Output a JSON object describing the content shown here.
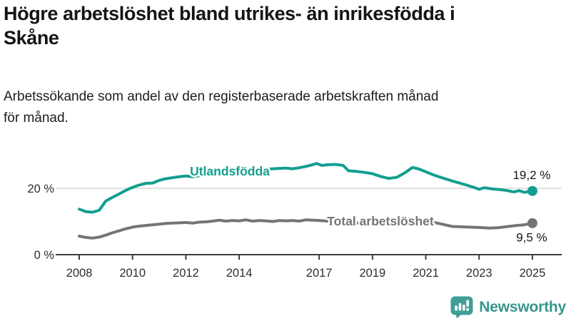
{
  "header": {
    "title": "Högre arbetslöshet bland utrikes- än inrikesfödda i Skåne",
    "title_lines": [
      "Högre arbetslöshet bland utrikes- än inrikesfödda i",
      "Skåne"
    ],
    "subtitle": "Arbetssökande som andel av den registerbaserade arbetskraften månad för månad.",
    "subtitle_lines": [
      "Arbetssökande som andel av den registerbaserade arbetskraften månad",
      "för månad."
    ]
  },
  "chart_data": {
    "type": "line",
    "title": "Arbetssökande som andel av den registerbaserade arbetskraften månad för månad",
    "xlabel": "",
    "ylabel": "",
    "xlim": [
      2008,
      2025
    ],
    "ylim": [
      0,
      30
    ],
    "grid": "y-only",
    "x_ticks": [
      2008,
      2010,
      2012,
      2014,
      2017,
      2019,
      2021,
      2023,
      2025
    ],
    "y_ticks": [
      {
        "value": 0,
        "label": "0 %"
      },
      {
        "value": 20,
        "label": "20 %"
      }
    ],
    "series": [
      {
        "name": "Utlandsfödda",
        "color": "#129e8f",
        "end_label": "19,2 %",
        "end_value": 19.2,
        "end_label_pos": "above",
        "x": [
          2008,
          2008.25,
          2008.5,
          2008.75,
          2009,
          2009.25,
          2009.5,
          2009.75,
          2010,
          2010.25,
          2010.5,
          2010.75,
          2011,
          2011.25,
          2011.5,
          2011.75,
          2012,
          2012.25,
          2012.5,
          2012.75,
          2013,
          2013.25,
          2013.5,
          2013.75,
          2014,
          2014.25,
          2014.5,
          2014.75,
          2015,
          2015.25,
          2015.5,
          2015.75,
          2016,
          2016.25,
          2016.5,
          2016.75,
          2016.9,
          2017.1,
          2017.3,
          2017.6,
          2017.9,
          2018.1,
          2018.4,
          2018.7,
          2019,
          2019.3,
          2019.6,
          2019.9,
          2020.2,
          2020.5,
          2020.75,
          2021,
          2021.3,
          2021.6,
          2022,
          2022.4,
          2022.8,
          2023,
          2023.2,
          2023.5,
          2023.8,
          2024,
          2024.3,
          2024.5,
          2024.7,
          2025
        ],
        "y": [
          13.7,
          13.0,
          12.8,
          13.4,
          16.2,
          17.3,
          18.3,
          19.4,
          20.3,
          21.0,
          21.5,
          21.6,
          22.4,
          22.9,
          23.2,
          23.5,
          23.7,
          23.5,
          23.8,
          24.1,
          24.3,
          24.6,
          24.8,
          25.0,
          25.1,
          25.3,
          25.5,
          25.6,
          25.7,
          25.9,
          26.0,
          26.1,
          25.9,
          26.2,
          26.6,
          27.1,
          27.5,
          26.9,
          27.1,
          27.2,
          26.9,
          25.3,
          25.1,
          24.8,
          24.4,
          23.6,
          23.0,
          23.3,
          24.6,
          26.3,
          25.8,
          25.0,
          24.0,
          23.2,
          22.2,
          21.3,
          20.3,
          19.7,
          20.2,
          19.8,
          19.6,
          19.4,
          18.9,
          19.3,
          18.8,
          19.2
        ]
      },
      {
        "name": "Total arbetslöshet",
        "color": "#757575",
        "end_label": "9,5 %",
        "end_value": 9.5,
        "end_label_pos": "below",
        "x": [
          2008,
          2008.25,
          2008.5,
          2008.75,
          2009,
          2009.25,
          2009.5,
          2009.75,
          2010,
          2010.25,
          2010.5,
          2010.75,
          2011,
          2011.25,
          2011.5,
          2011.75,
          2012,
          2012.25,
          2012.5,
          2012.75,
          2013,
          2013.25,
          2013.5,
          2013.75,
          2014,
          2014.25,
          2014.5,
          2014.75,
          2015,
          2015.25,
          2015.5,
          2015.75,
          2016,
          2016.25,
          2016.5,
          2016.75,
          2017,
          2017.5,
          2018,
          2018.5,
          2019,
          2019.5,
          2020,
          2020.4,
          2020.7,
          2021,
          2021.5,
          2022,
          2022.3,
          2022.6,
          2023,
          2023.4,
          2023.7,
          2024,
          2024.4,
          2024.7,
          2025
        ],
        "y": [
          5.6,
          5.2,
          5.0,
          5.3,
          5.9,
          6.6,
          7.2,
          7.8,
          8.3,
          8.6,
          8.8,
          9.0,
          9.2,
          9.4,
          9.5,
          9.6,
          9.7,
          9.5,
          9.8,
          9.9,
          10.1,
          10.4,
          10.1,
          10.3,
          10.2,
          10.5,
          10.1,
          10.3,
          10.2,
          10.0,
          10.3,
          10.2,
          10.3,
          10.1,
          10.5,
          10.4,
          10.3,
          10.0,
          9.7,
          9.5,
          9.4,
          9.2,
          9.9,
          10.9,
          10.6,
          10.2,
          9.4,
          8.5,
          8.4,
          8.3,
          8.2,
          8.0,
          8.1,
          8.4,
          8.8,
          9.0,
          9.5
        ]
      }
    ]
  },
  "branding": {
    "logo_text": "Newsworthy",
    "logo_text_color": "#37968c",
    "logo_icon_color": "#419e95"
  },
  "colors": {
    "background": "#ffffff",
    "axis": "#3d3d3d",
    "gridline": "#d9d9d9",
    "title_text": "#141414",
    "value_label_text": "#161616"
  }
}
